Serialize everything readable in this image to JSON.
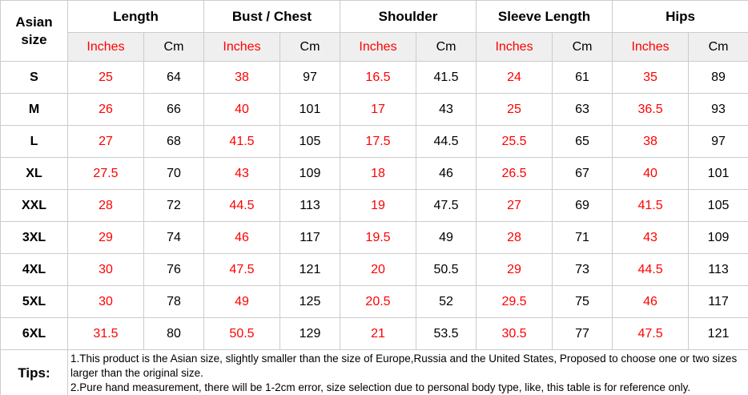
{
  "colors": {
    "red": "#ff0000",
    "border": "#cccccc",
    "subheader_bg": "#efefef"
  },
  "table": {
    "corner_header": "Asian size",
    "unit_inches": "Inches",
    "unit_cm": "Cm",
    "groups": [
      {
        "label": "Length"
      },
      {
        "label": "Bust / Chest"
      },
      {
        "label": "Shoulder"
      },
      {
        "label": "Sleeve Length"
      },
      {
        "label": "Hips"
      }
    ],
    "rows": [
      {
        "size": "S",
        "values": [
          [
            "25",
            "64"
          ],
          [
            "38",
            "97"
          ],
          [
            "16.5",
            "41.5"
          ],
          [
            "24",
            "61"
          ],
          [
            "35",
            "89"
          ]
        ]
      },
      {
        "size": "M",
        "values": [
          [
            "26",
            "66"
          ],
          [
            "40",
            "101"
          ],
          [
            "17",
            "43"
          ],
          [
            "25",
            "63"
          ],
          [
            "36.5",
            "93"
          ]
        ]
      },
      {
        "size": "L",
        "values": [
          [
            "27",
            "68"
          ],
          [
            "41.5",
            "105"
          ],
          [
            "17.5",
            "44.5"
          ],
          [
            "25.5",
            "65"
          ],
          [
            "38",
            "97"
          ]
        ]
      },
      {
        "size": "XL",
        "values": [
          [
            "27.5",
            "70"
          ],
          [
            "43",
            "109"
          ],
          [
            "18",
            "46"
          ],
          [
            "26.5",
            "67"
          ],
          [
            "40",
            "101"
          ]
        ]
      },
      {
        "size": "XXL",
        "values": [
          [
            "28",
            "72"
          ],
          [
            "44.5",
            "113"
          ],
          [
            "19",
            "47.5"
          ],
          [
            "27",
            "69"
          ],
          [
            "41.5",
            "105"
          ]
        ]
      },
      {
        "size": "3XL",
        "values": [
          [
            "29",
            "74"
          ],
          [
            "46",
            "117"
          ],
          [
            "19.5",
            "49"
          ],
          [
            "28",
            "71"
          ],
          [
            "43",
            "109"
          ]
        ]
      },
      {
        "size": "4XL",
        "values": [
          [
            "30",
            "76"
          ],
          [
            "47.5",
            "121"
          ],
          [
            "20",
            "50.5"
          ],
          [
            "29",
            "73"
          ],
          [
            "44.5",
            "113"
          ]
        ]
      },
      {
        "size": "5XL",
        "values": [
          [
            "30",
            "78"
          ],
          [
            "49",
            "125"
          ],
          [
            "20.5",
            "52"
          ],
          [
            "29.5",
            "75"
          ],
          [
            "46",
            "117"
          ]
        ]
      },
      {
        "size": "6XL",
        "values": [
          [
            "31.5",
            "80"
          ],
          [
            "50.5",
            "129"
          ],
          [
            "21",
            "53.5"
          ],
          [
            "30.5",
            "77"
          ],
          [
            "47.5",
            "121"
          ]
        ]
      }
    ],
    "tips": {
      "label": "Tips:",
      "lines": [
        "1.This product is the Asian size, slightly smaller than the size of Europe,Russia and the United States, Proposed to choose one or two sizes larger than the original size.",
        "2.Pure hand measurement, there will be 1-2cm error, size selection due to personal body type, like, this table is for reference only."
      ]
    }
  }
}
